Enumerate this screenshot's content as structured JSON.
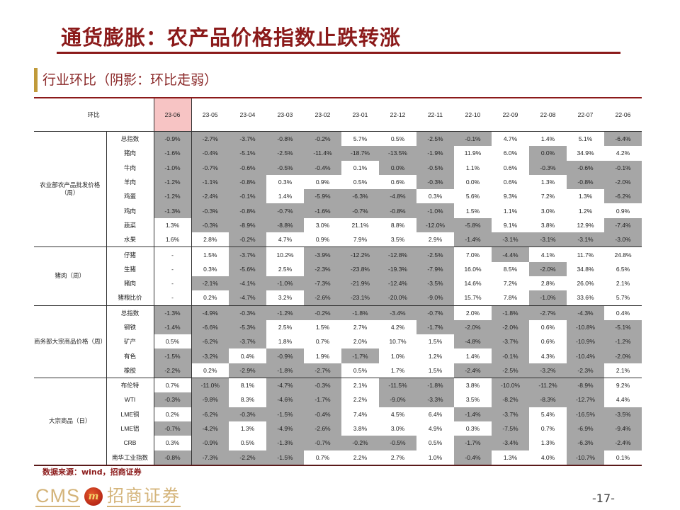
{
  "header": {
    "title": "通货膨胀：农产品价格指数止跌转涨",
    "subtitle": "行业环比（阴影：环比走弱）"
  },
  "table": {
    "corner_label": "环比",
    "columns": [
      "23-06",
      "23-05",
      "23-04",
      "23-03",
      "23-02",
      "23-01",
      "22-12",
      "22-11",
      "22-10",
      "22-09",
      "22-08",
      "22-07",
      "22-06"
    ],
    "highlight_column": "23-06",
    "shade_color": "#a6a6a6",
    "highlight_color": "#f7c4c4",
    "groups": [
      {
        "name": "农业部农产品批发价格（周）",
        "rows": [
          {
            "item": "总指数",
            "values": [
              "-0.9%",
              "-2.7%",
              "-3.7%",
              "-0.8%",
              "-0.2%",
              "5.7%",
              "0.5%",
              "-2.5%",
              "-0.1%",
              "4.7%",
              "1.4%",
              "5.1%",
              "-6.4%"
            ],
            "shaded": [
              1,
              1,
              1,
              1,
              1,
              0,
              0,
              1,
              1,
              0,
              0,
              0,
              1
            ]
          },
          {
            "item": "猪肉",
            "values": [
              "-1.6%",
              "-0.4%",
              "-5.1%",
              "-2.5%",
              "-11.4%",
              "-18.7%",
              "-13.5%",
              "-1.9%",
              "11.9%",
              "6.0%",
              "0.0%",
              "34.9%",
              "4.2%"
            ],
            "shaded": [
              1,
              1,
              1,
              1,
              1,
              1,
              1,
              1,
              0,
              0,
              1,
              0,
              0
            ]
          },
          {
            "item": "牛肉",
            "values": [
              "-1.0%",
              "-0.7%",
              "-0.6%",
              "-0.5%",
              "-0.4%",
              "0.1%",
              "0.0%",
              "-0.5%",
              "1.1%",
              "0.6%",
              "-0.3%",
              "-0.6%",
              "-0.1%"
            ],
            "shaded": [
              1,
              1,
              1,
              1,
              1,
              0,
              1,
              1,
              0,
              0,
              1,
              1,
              1
            ]
          },
          {
            "item": "羊肉",
            "values": [
              "-1.2%",
              "-1.1%",
              "-0.8%",
              "0.3%",
              "0.9%",
              "0.5%",
              "0.6%",
              "-0.3%",
              "0.0%",
              "0.6%",
              "1.3%",
              "-0.8%",
              "-2.0%"
            ],
            "shaded": [
              1,
              1,
              1,
              0,
              0,
              0,
              0,
              1,
              0,
              0,
              0,
              1,
              1
            ]
          },
          {
            "item": "鸡蛋",
            "values": [
              "-1.2%",
              "-2.4%",
              "-0.1%",
              "1.4%",
              "-5.9%",
              "-6.3%",
              "-4.8%",
              "0.3%",
              "5.6%",
              "9.3%",
              "7.2%",
              "1.3%",
              "-6.2%"
            ],
            "shaded": [
              1,
              1,
              1,
              0,
              1,
              1,
              1,
              0,
              0,
              0,
              0,
              0,
              1
            ]
          },
          {
            "item": "鸡肉",
            "values": [
              "-1.3%",
              "-0.3%",
              "-0.8%",
              "-0.7%",
              "-1.6%",
              "-0.7%",
              "-0.8%",
              "-1.0%",
              "1.5%",
              "1.1%",
              "3.0%",
              "1.2%",
              "0.9%"
            ],
            "shaded": [
              1,
              1,
              1,
              1,
              1,
              1,
              1,
              1,
              0,
              0,
              0,
              0,
              0
            ]
          },
          {
            "item": "蔬菜",
            "values": [
              "1.3%",
              "-0.3%",
              "-8.9%",
              "-8.8%",
              "3.0%",
              "21.1%",
              "8.8%",
              "-12.0%",
              "-5.8%",
              "9.1%",
              "3.8%",
              "12.9%",
              "-7.4%"
            ],
            "shaded": [
              0,
              1,
              1,
              1,
              0,
              0,
              0,
              1,
              1,
              0,
              0,
              0,
              1
            ]
          },
          {
            "item": "水果",
            "values": [
              "1.6%",
              "2.8%",
              "-0.2%",
              "4.7%",
              "0.9%",
              "7.9%",
              "3.5%",
              "2.9%",
              "-1.4%",
              "-3.1%",
              "-3.1%",
              "-3.1%",
              "-3.0%"
            ],
            "shaded": [
              0,
              0,
              1,
              0,
              0,
              0,
              0,
              0,
              1,
              1,
              1,
              1,
              1
            ]
          }
        ]
      },
      {
        "name": "猪肉（周）",
        "rows": [
          {
            "item": "仔猪",
            "values": [
              "-",
              "1.5%",
              "-3.7%",
              "10.2%",
              "-3.9%",
              "-12.2%",
              "-12.8%",
              "-2.5%",
              "7.0%",
              "-4.4%",
              "4.1%",
              "11.7%",
              "24.8%"
            ],
            "shaded": [
              0,
              0,
              1,
              0,
              1,
              1,
              1,
              1,
              0,
              1,
              0,
              0,
              0
            ]
          },
          {
            "item": "生猪",
            "values": [
              "-",
              "0.3%",
              "-5.6%",
              "2.5%",
              "-2.3%",
              "-23.8%",
              "-19.3%",
              "-7.9%",
              "16.0%",
              "8.5%",
              "-2.0%",
              "34.8%",
              "6.5%"
            ],
            "shaded": [
              0,
              0,
              1,
              0,
              1,
              1,
              1,
              1,
              0,
              0,
              1,
              0,
              0
            ]
          },
          {
            "item": "猪肉",
            "values": [
              "-",
              "-2.1%",
              "-4.1%",
              "-1.0%",
              "-7.3%",
              "-21.9%",
              "-12.4%",
              "-3.5%",
              "14.6%",
              "7.2%",
              "2.8%",
              "26.0%",
              "2.1%"
            ],
            "shaded": [
              0,
              1,
              1,
              1,
              1,
              1,
              1,
              1,
              0,
              0,
              0,
              0,
              0
            ]
          },
          {
            "item": "猪粮比价",
            "values": [
              "-",
              "0.2%",
              "-4.7%",
              "3.2%",
              "-2.6%",
              "-23.1%",
              "-20.0%",
              "-9.0%",
              "15.7%",
              "7.8%",
              "-1.0%",
              "33.6%",
              "5.7%"
            ],
            "shaded": [
              0,
              0,
              1,
              0,
              1,
              1,
              1,
              1,
              0,
              0,
              1,
              0,
              0
            ]
          }
        ]
      },
      {
        "name": "商务部大宗商品价格（周）",
        "rows": [
          {
            "item": "总指数",
            "values": [
              "-1.3%",
              "-4.9%",
              "-0.3%",
              "-1.2%",
              "-0.2%",
              "-1.8%",
              "-3.4%",
              "-0.7%",
              "2.0%",
              "-1.8%",
              "-2.7%",
              "-4.3%",
              "0.4%"
            ],
            "shaded": [
              1,
              1,
              1,
              1,
              1,
              1,
              1,
              1,
              0,
              1,
              1,
              1,
              0
            ]
          },
          {
            "item": "钢铁",
            "values": [
              "-1.4%",
              "-6.6%",
              "-5.3%",
              "2.5%",
              "1.5%",
              "2.7%",
              "4.2%",
              "-1.7%",
              "-2.0%",
              "-2.0%",
              "0.6%",
              "-10.8%",
              "-5.1%"
            ],
            "shaded": [
              1,
              1,
              1,
              0,
              0,
              0,
              0,
              1,
              1,
              1,
              0,
              1,
              1
            ]
          },
          {
            "item": "矿产",
            "values": [
              "0.5%",
              "-6.2%",
              "-3.7%",
              "1.8%",
              "0.7%",
              "2.0%",
              "10.7%",
              "1.5%",
              "-4.8%",
              "-3.7%",
              "0.6%",
              "-10.9%",
              "-1.2%"
            ],
            "shaded": [
              0,
              1,
              1,
              0,
              0,
              0,
              0,
              0,
              1,
              1,
              0,
              1,
              1
            ]
          },
          {
            "item": "有色",
            "values": [
              "-1.5%",
              "-3.2%",
              "0.4%",
              "-0.9%",
              "1.9%",
              "-1.7%",
              "1.0%",
              "1.2%",
              "1.4%",
              "-0.1%",
              "4.3%",
              "-10.4%",
              "-2.0%"
            ],
            "shaded": [
              1,
              1,
              0,
              1,
              0,
              1,
              0,
              0,
              0,
              1,
              0,
              1,
              1
            ]
          },
          {
            "item": "橡胶",
            "values": [
              "-2.2%",
              "0.2%",
              "-2.9%",
              "-1.8%",
              "-2.7%",
              "0.5%",
              "1.7%",
              "1.5%",
              "-2.4%",
              "-2.5%",
              "-3.2%",
              "-2.3%",
              "2.1%"
            ],
            "shaded": [
              1,
              0,
              1,
              1,
              1,
              0,
              0,
              0,
              1,
              1,
              1,
              1,
              0
            ]
          }
        ]
      },
      {
        "name": "大宗商品（日）",
        "rows": [
          {
            "item": "布伦特",
            "values": [
              "0.7%",
              "-11.0%",
              "8.1%",
              "-4.7%",
              "-0.3%",
              "2.1%",
              "-11.5%",
              "-1.8%",
              "3.8%",
              "-10.0%",
              "-11.2%",
              "-8.9%",
              "9.2%"
            ],
            "shaded": [
              0,
              1,
              0,
              1,
              1,
              0,
              1,
              1,
              0,
              1,
              1,
              1,
              0
            ]
          },
          {
            "item": "WTI",
            "values": [
              "-0.3%",
              "-9.8%",
              "8.3%",
              "-4.6%",
              "-1.7%",
              "2.2%",
              "-9.0%",
              "-3.3%",
              "3.5%",
              "-8.2%",
              "-8.3%",
              "-12.7%",
              "4.4%"
            ],
            "shaded": [
              1,
              1,
              0,
              1,
              1,
              0,
              1,
              1,
              0,
              1,
              1,
              1,
              0
            ]
          },
          {
            "item": "LME铜",
            "values": [
              "0.2%",
              "-6.2%",
              "-0.3%",
              "-1.5%",
              "-0.4%",
              "7.4%",
              "4.5%",
              "6.4%",
              "-1.4%",
              "-3.7%",
              "5.4%",
              "-16.5%",
              "-3.5%"
            ],
            "shaded": [
              0,
              1,
              1,
              1,
              1,
              0,
              0,
              0,
              1,
              1,
              0,
              1,
              1
            ]
          },
          {
            "item": "LME铝",
            "values": [
              "-0.7%",
              "-4.2%",
              "1.3%",
              "-4.9%",
              "-2.6%",
              "3.8%",
              "3.0%",
              "4.9%",
              "0.3%",
              "-7.5%",
              "0.7%",
              "-6.9%",
              "-9.4%"
            ],
            "shaded": [
              1,
              1,
              0,
              1,
              1,
              0,
              0,
              0,
              0,
              1,
              0,
              1,
              1
            ]
          },
          {
            "item": "CRB",
            "values": [
              "0.3%",
              "-0.9%",
              "0.5%",
              "-1.3%",
              "-0.7%",
              "-0.2%",
              "-0.5%",
              "0.5%",
              "-1.7%",
              "-3.4%",
              "1.3%",
              "-6.3%",
              "-2.4%"
            ],
            "shaded": [
              0,
              1,
              0,
              1,
              1,
              1,
              1,
              0,
              1,
              1,
              0,
              1,
              1
            ]
          },
          {
            "item": "南华工业指数",
            "values": [
              "-0.8%",
              "-7.3%",
              "-2.2%",
              "-1.5%",
              "0.7%",
              "2.2%",
              "2.7%",
              "1.0%",
              "-0.4%",
              "1.3%",
              "4.0%",
              "-10.7%",
              "0.1%"
            ],
            "shaded": [
              1,
              1,
              1,
              1,
              0,
              0,
              0,
              0,
              1,
              0,
              0,
              1,
              0
            ]
          }
        ]
      }
    ]
  },
  "footer": {
    "source": "数据来源：wind，招商证券",
    "logo_latin": "CMS",
    "logo_mark": "m",
    "logo_cn": "招商证券",
    "page_number": "-17-"
  }
}
